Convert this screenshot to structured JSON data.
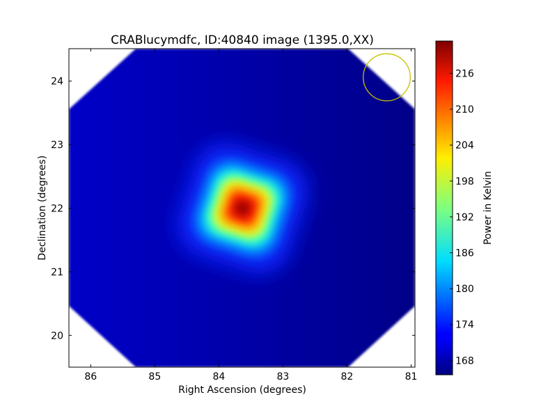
{
  "chart_data": {
    "type": "heatmap",
    "title": "CRABlucymdfc, ID:40840 image (1395.0,XX)",
    "xlabel": "Right Ascension (degrees)",
    "ylabel": "Declination (degrees)",
    "xlim": [
      86.34,
      80.94
    ],
    "ylim": [
      19.5,
      24.51
    ],
    "xticks": [
      86,
      85,
      84,
      83,
      82,
      81
    ],
    "yticks": [
      20,
      21,
      22,
      23,
      24
    ],
    "colormap": "jet",
    "colorbar": {
      "label": "Power in Kelvin",
      "range": [
        165.6,
        221.4
      ],
      "ticks": [
        168,
        174,
        180,
        186,
        192,
        198,
        204,
        210,
        216
      ]
    },
    "source_peak": {
      "ra": 83.63,
      "dec": 22.0,
      "value": 220
    },
    "background_value": 168,
    "marker_circle": {
      "ra": 81.38,
      "dec": 24.06,
      "radius_deg": 0.37,
      "color": "#c8c000"
    }
  }
}
